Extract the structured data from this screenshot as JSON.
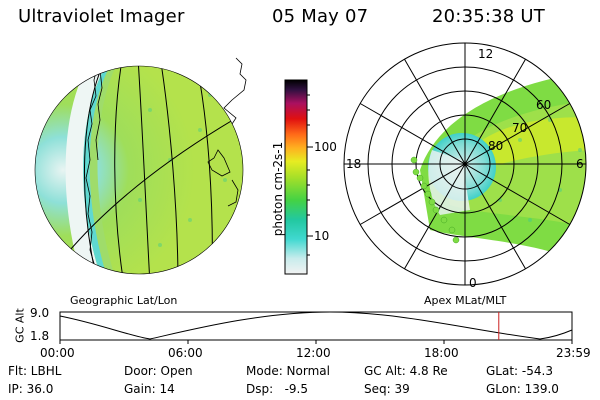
{
  "header": {
    "instrument": "Ultraviolet Imager",
    "date": "05 May 07",
    "time": "20:35:38 UT"
  },
  "colorbar": {
    "unit_label": "photon cm-2s-1",
    "ticks": [
      {
        "label": "100",
        "value": 100
      },
      {
        "label": "10",
        "value": 10
      }
    ]
  },
  "geo_panel": {
    "label": "Geographic Lat/Lon"
  },
  "polar_panel": {
    "label": "Apex  MLat/MLT",
    "mlt_labels": {
      "top": "12",
      "left": "18",
      "right": "6",
      "bottom": "0"
    },
    "lat_labels": [
      "60",
      "70",
      "80"
    ]
  },
  "altitude_plot": {
    "ylabel": "GC Alt",
    "y_ticks": [
      "9.0",
      "1.8"
    ],
    "x_ticks": [
      "00:00",
      "06:00",
      "12:00",
      "18:00",
      "23:59"
    ],
    "current_time_fraction": 0.857,
    "accent_color": "#cc2222"
  },
  "info": {
    "row1": {
      "filter": "Flt: LBHL",
      "door": "Door: Open",
      "mode": "Mode: Normal",
      "gc_alt": "GC Alt: 4.8 Re",
      "glat": "GLat: -54.3"
    },
    "row2": {
      "ip": "IP: 36.0",
      "gain": "Gain: 14",
      "dsp": "Dsp:   -9.5",
      "seq": "Seq: 39",
      "glon": "GLon: 139.0"
    }
  }
}
